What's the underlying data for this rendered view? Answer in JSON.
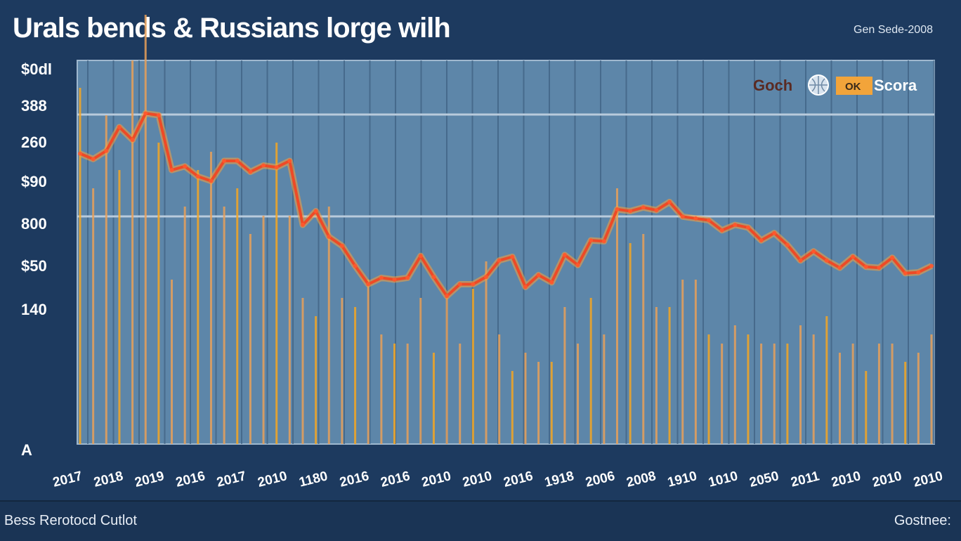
{
  "header": {
    "title": "Urals bends & Russians lorge wilh",
    "subtitle": "Gen Sede-2008"
  },
  "footer": {
    "left": "Bess Rerotocd Cutlot",
    "right": "Gostnee:"
  },
  "colors": {
    "background": "#1d3a5f",
    "plot": "#5d86a9",
    "line": "#ee4a26",
    "bars": "#f2a43a"
  },
  "chart_data": {
    "type": "line",
    "title": "Urals bends & Russians lorge wilh",
    "y_tick_labels": [
      "$0dl",
      "388",
      "260",
      "$90",
      "800",
      "$50",
      "140",
      "A"
    ],
    "x_tick_labels": [
      "2017",
      "2018",
      "2019",
      "2016",
      "2017",
      "2010",
      "1180",
      "2016",
      "2016",
      "2010",
      "2010",
      "2016",
      "1918",
      "2006",
      "2008",
      "1910",
      "1010",
      "2050",
      "2011",
      "2010",
      "2010",
      "2010"
    ],
    "legend": {
      "items": [
        "Goch",
        "OK",
        "Scora"
      ]
    },
    "grid": true,
    "series": [
      {
        "name": "",
        "x": [
          0,
          1,
          2,
          3,
          4,
          5,
          6,
          7,
          8,
          9,
          10,
          11,
          12,
          13,
          14,
          15,
          16,
          17,
          18,
          19,
          20,
          21,
          22,
          23,
          24,
          25,
          26,
          27,
          28,
          29,
          30,
          31,
          32,
          33,
          34,
          35,
          36,
          37,
          38,
          39,
          40,
          41,
          42,
          43,
          44,
          45,
          46,
          47,
          48,
          49,
          50,
          51,
          52,
          53,
          54,
          55,
          56,
          57,
          58,
          59,
          60,
          61,
          62,
          63,
          64,
          65
        ],
        "values": [
          318,
          312,
          321,
          347,
          333,
          362,
          360,
          300,
          304,
          293,
          288,
          310,
          310,
          298,
          305,
          303,
          310,
          240,
          255,
          227,
          217,
          195,
          175,
          182,
          180,
          182,
          206,
          183,
          162,
          175,
          175,
          183,
          201,
          205,
          172,
          185,
          177,
          207,
          196,
          223,
          222,
          257,
          255,
          259,
          256,
          265,
          249,
          247,
          245,
          234,
          240,
          237,
          223,
          231,
          218,
          201,
          211,
          201,
          193,
          205,
          194,
          193,
          204,
          187,
          188,
          195
        ]
      }
    ],
    "bars": {
      "name": "",
      "values": [
        390,
        280,
        360,
        300,
        420,
        470,
        330,
        180,
        260,
        300,
        320,
        260,
        280,
        230,
        250,
        330,
        250,
        160,
        140,
        260,
        160,
        150,
        180,
        120,
        110,
        110,
        160,
        100,
        160,
        110,
        170,
        200,
        120,
        80,
        100,
        90,
        90,
        150,
        110,
        160,
        120,
        280,
        220,
        230,
        150,
        150,
        180,
        180,
        120,
        110,
        130,
        120,
        110,
        110,
        110,
        130,
        120,
        140,
        100,
        110,
        80,
        110,
        110,
        90,
        100,
        120
      ]
    },
    "ylim": [
      0,
      420
    ]
  }
}
